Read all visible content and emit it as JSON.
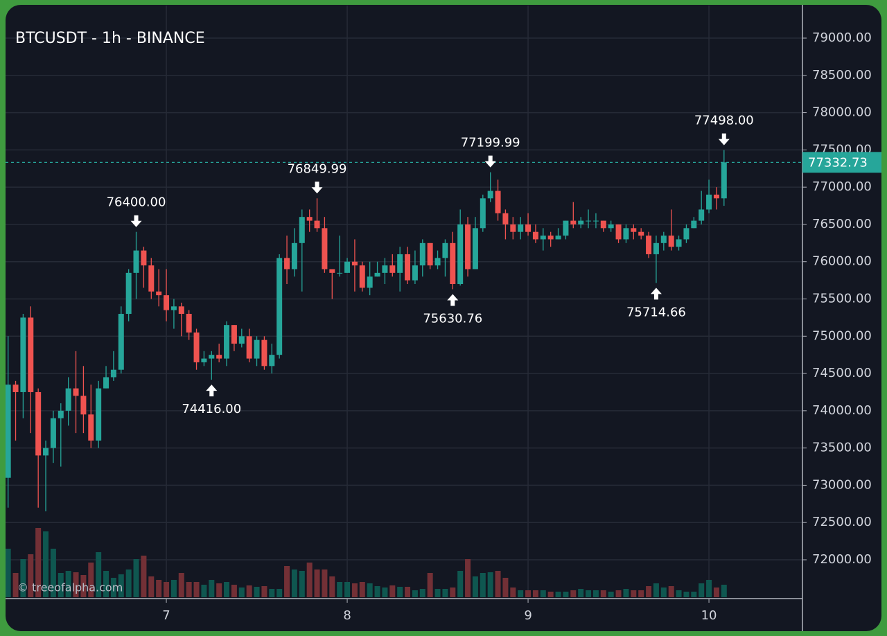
{
  "chart_data": {
    "type": "candlestick",
    "title": "BTCUSDT - 1h - BINANCE",
    "watermark": "© treeofalpha.com",
    "x": [
      6.125,
      6.1667,
      6.2083,
      6.25,
      6.2917,
      6.3333,
      6.375,
      6.4167,
      6.4583,
      6.5,
      6.5417,
      6.5833,
      6.625,
      6.6667,
      6.7083,
      6.75,
      6.7917,
      6.8333,
      6.875,
      6.9167,
      6.9583,
      7,
      7.0417,
      7.0833,
      7.125,
      7.1667,
      7.2083,
      7.25,
      7.2917,
      7.3333,
      7.375,
      7.4167,
      7.4583,
      7.5,
      7.5417,
      7.5833,
      7.625,
      7.6667,
      7.7083,
      7.75,
      7.7917,
      7.8333,
      7.875,
      7.9167,
      7.9583,
      8,
      8.0417,
      8.0833,
      8.125,
      8.1667,
      8.2083,
      8.25,
      8.2917,
      8.3333,
      8.375,
      8.4167,
      8.4583,
      8.5,
      8.5417,
      8.5833,
      8.625,
      8.6667,
      8.7083,
      8.75,
      8.7917,
      8.8333,
      8.875,
      8.9167,
      8.9583,
      9,
      9.0417,
      9.0833,
      9.125,
      9.1667,
      9.2083,
      9.25,
      9.2917,
      9.3333,
      9.375,
      9.4167,
      9.4583,
      9.5,
      9.5417,
      9.5833,
      9.625,
      9.6667,
      9.7083,
      9.75,
      9.7917,
      9.8333,
      9.875,
      9.9167,
      9.9583,
      10,
      10.0417,
      10.0833
    ],
    "open": [
      73100,
      74350,
      74250,
      75250,
      74250,
      73400,
      73500,
      73900,
      74000,
      74300,
      74200,
      73950,
      73600,
      74300,
      74450,
      74550,
      75300,
      75850,
      76150,
      75950,
      75600,
      75550,
      75350,
      75400,
      75300,
      75050,
      74650,
      74700,
      74750,
      74700,
      75150,
      74900,
      75000,
      74700,
      74950,
      74600,
      74750,
      76050,
      75900,
      76250,
      76600,
      76550,
      76450,
      75900,
      75850,
      75850,
      76000,
      75950,
      75650,
      75800,
      75850,
      75950,
      75850,
      76100,
      75750,
      75950,
      76250,
      75950,
      76050,
      76250,
      75700,
      76500,
      75900,
      76450,
      76850,
      76950,
      76650,
      76500,
      76400,
      76500,
      76400,
      76300,
      76350,
      76300,
      76350,
      76550,
      76500,
      76550,
      76550,
      76550,
      76450,
      76500,
      76300,
      76450,
      76400,
      76350,
      76100,
      76250,
      76350,
      76200,
      76300,
      76450,
      76550,
      76700,
      76900,
      76850
    ],
    "high": [
      75000,
      74400,
      75300,
      75400,
      74300,
      73600,
      74000,
      74100,
      74450,
      74800,
      74600,
      74350,
      74400,
      74600,
      74800,
      75400,
      75900,
      76400,
      76200,
      76050,
      75900,
      75900,
      75500,
      75450,
      75350,
      75100,
      74800,
      74800,
      74900,
      75200,
      75150,
      75100,
      75100,
      75000,
      75000,
      74900,
      76100,
      76350,
      76450,
      76700,
      76700,
      76849.99,
      76600,
      75900,
      76350,
      76050,
      76300,
      76000,
      76000,
      76000,
      76050,
      76100,
      76200,
      76200,
      76150,
      76300,
      76250,
      76150,
      76300,
      76400,
      76700,
      76600,
      76600,
      76900,
      77199.99,
      77100,
      76700,
      76600,
      76600,
      76650,
      76500,
      76450,
      76400,
      76450,
      76550,
      76800,
      76600,
      76700,
      76650,
      76550,
      76550,
      76500,
      76500,
      76500,
      76450,
      76400,
      76350,
      76400,
      76700,
      76350,
      76500,
      76600,
      76950,
      77100,
      77000,
      77498
    ],
    "low": [
      72700,
      73600,
      73900,
      73700,
      72700,
      72650,
      73300,
      73250,
      73800,
      73700,
      73700,
      73500,
      73500,
      74300,
      74400,
      74500,
      75200,
      75500,
      75650,
      75500,
      75400,
      75200,
      75100,
      75000,
      74950,
      74550,
      74600,
      74416,
      74650,
      74600,
      74800,
      74850,
      74650,
      74600,
      74550,
      74500,
      74700,
      75700,
      75800,
      75600,
      76400,
      76400,
      75850,
      75500,
      75800,
      75850,
      75600,
      75600,
      75550,
      75800,
      75700,
      75800,
      75600,
      75700,
      75700,
      75800,
      75900,
      75900,
      75800,
      75630.76,
      75680,
      75800,
      75900,
      76400,
      76800,
      76550,
      76300,
      76300,
      76300,
      76350,
      76250,
      76150,
      76200,
      76300,
      76300,
      76450,
      76450,
      76450,
      76450,
      76400,
      76400,
      76250,
      76250,
      76300,
      76300,
      76050,
      75714.66,
      76150,
      76150,
      76150,
      76250,
      76450,
      76500,
      76650,
      76700,
      76750
    ],
    "close": [
      74350,
      74250,
      75250,
      74250,
      73400,
      73500,
      73900,
      74000,
      74300,
      74200,
      73950,
      73600,
      74300,
      74450,
      74550,
      75300,
      75850,
      76150,
      75950,
      75600,
      75550,
      75350,
      75400,
      75300,
      75050,
      74650,
      74700,
      74750,
      74700,
      75150,
      74900,
      75000,
      74700,
      74950,
      74600,
      74750,
      76050,
      75900,
      76250,
      76600,
      76550,
      76450,
      75900,
      75850,
      75850,
      76000,
      75950,
      75650,
      75800,
      75850,
      75950,
      75850,
      76100,
      75750,
      75950,
      76250,
      75950,
      76050,
      76250,
      75700,
      76500,
      75900,
      76450,
      76850,
      76950,
      76650,
      76500,
      76400,
      76500,
      76400,
      76300,
      76350,
      76300,
      76350,
      76550,
      76500,
      76550,
      76550,
      76550,
      76450,
      76500,
      76300,
      76450,
      76400,
      76350,
      76100,
      76250,
      76350,
      76200,
      76300,
      76450,
      76550,
      76700,
      76900,
      76850,
      77332.73
    ],
    "volume": [
      70,
      35,
      55,
      62,
      100,
      95,
      70,
      35,
      38,
      36,
      32,
      50,
      65,
      38,
      28,
      33,
      40,
      55,
      60,
      30,
      25,
      22,
      25,
      35,
      22,
      22,
      18,
      25,
      20,
      22,
      18,
      14,
      17,
      15,
      16,
      12,
      12,
      45,
      40,
      38,
      50,
      40,
      40,
      30,
      22,
      22,
      20,
      22,
      20,
      16,
      14,
      17,
      15,
      15,
      10,
      12,
      35,
      12,
      12,
      14,
      38,
      55,
      30,
      35,
      36,
      38,
      28,
      14,
      10,
      10,
      10,
      10,
      8,
      8,
      8,
      10,
      12,
      10,
      10,
      10,
      8,
      10,
      12,
      10,
      10,
      16,
      20,
      14,
      16,
      10,
      8,
      8,
      20,
      25,
      14,
      18
    ],
    "up_color": "#26a69a",
    "down_color": "#ef5350",
    "volume_up_color": "#0f5750",
    "volume_down_color": "#733036",
    "xlim": [
      6.111,
      10.517
    ],
    "xticks": [
      7,
      8,
      9,
      10
    ],
    "ylim": [
      71498,
      79437
    ],
    "yticks": [
      {
        "value": 72000,
        "label": "72000.00"
      },
      {
        "value": 72500,
        "label": "72500.00"
      },
      {
        "value": 73000,
        "label": "73000.00"
      },
      {
        "value": 73500,
        "label": "73500.00"
      },
      {
        "value": 74000,
        "label": "74000.00"
      },
      {
        "value": 74500,
        "label": "74500.00"
      },
      {
        "value": 75000,
        "label": "75000.00"
      },
      {
        "value": 75500,
        "label": "75500.00"
      },
      {
        "value": 76000,
        "label": "76000.00"
      },
      {
        "value": 76500,
        "label": "76500.00"
      },
      {
        "value": 77000,
        "label": "77000.00"
      },
      {
        "value": 77500,
        "label": "77500.00"
      },
      {
        "value": 78000,
        "label": "78000.00"
      },
      {
        "value": 78500,
        "label": "78500.00"
      },
      {
        "value": 79000,
        "label": "79000.00"
      }
    ],
    "grid": true,
    "last_price": {
      "value": 77332.73,
      "label": "77332.73"
    },
    "annotations": [
      {
        "x": 6.8333,
        "value": 76400,
        "label": "76400.00"
      },
      {
        "x": 7.25,
        "value": 74416,
        "label": "74416.00"
      },
      {
        "x": 7.8333,
        "value": 76849.99,
        "label": "76849.99"
      },
      {
        "x": 8.5833,
        "value": 75630.76,
        "label": "75630.76"
      },
      {
        "x": 8.7917,
        "value": 77199.99,
        "label": "77199.99"
      },
      {
        "x": 9.7083,
        "value": 75714.66,
        "label": "75714.66"
      },
      {
        "x": 10.0833,
        "value": 77498,
        "label": "77498.00"
      }
    ]
  }
}
